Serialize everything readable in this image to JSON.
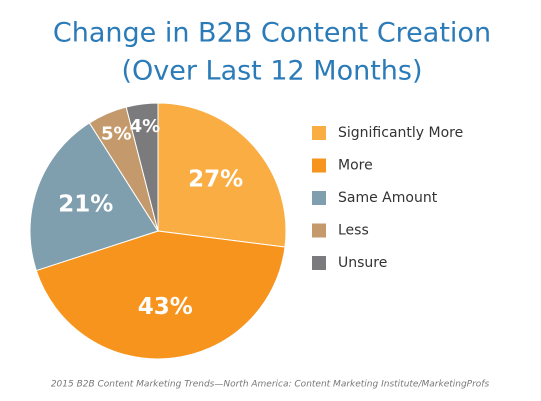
{
  "chart_data": {
    "type": "pie",
    "title": [
      "Change in B2B Content Creation",
      "(Over Last 12 Months)"
    ],
    "categories": [
      "Significantly More",
      "More",
      "Same Amount",
      "Less",
      "Unsure"
    ],
    "values": [
      27,
      43,
      21,
      5,
      4
    ],
    "value_labels": [
      "27%",
      "43%",
      "21%",
      "5%",
      "4%"
    ],
    "colors": [
      "#f9ad42",
      "#f7941d",
      "#7f9eae",
      "#c49a6c",
      "#7b7b7d"
    ],
    "legend": "right",
    "source": "2015 B2B Content Marketing Trends—North America: Content Marketing Institute/MarketingProfs"
  }
}
